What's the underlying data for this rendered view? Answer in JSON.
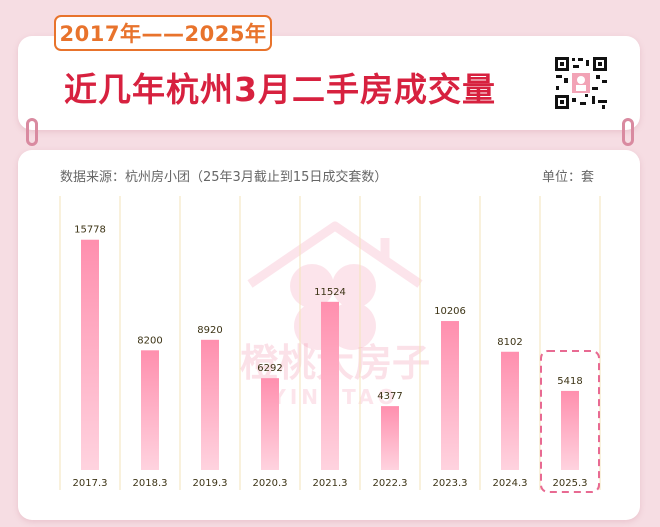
{
  "header": {
    "year_range": "2017年——2025年",
    "title": "近几年杭州3月二手房成交量"
  },
  "source_note": "数据来源：杭州房小团（25年3月截止到15日成交套数）",
  "unit_note": "单位：套",
  "watermark": {
    "text": "橙桃大房子",
    "latin": "YINGTAO"
  },
  "colors": {
    "bar_top": "#ff8fae",
    "bar_bottom": "#ffd3df",
    "highlight_border": "#e86a92",
    "title": "#d7213f",
    "tag": "#e8732c",
    "background": "#f6dde3"
  },
  "chart_data": {
    "type": "bar",
    "categories": [
      "2017.3",
      "2018.3",
      "2019.3",
      "2020.3",
      "2021.3",
      "2022.3",
      "2023.3",
      "2024.3",
      "2025.3"
    ],
    "values": [
      15778,
      8200,
      8920,
      6292,
      11524,
      4377,
      10206,
      8102,
      5418
    ],
    "ylim": [
      0,
      18500
    ],
    "grid": "vertical-dividers",
    "highlighted_category": "2025.3"
  }
}
